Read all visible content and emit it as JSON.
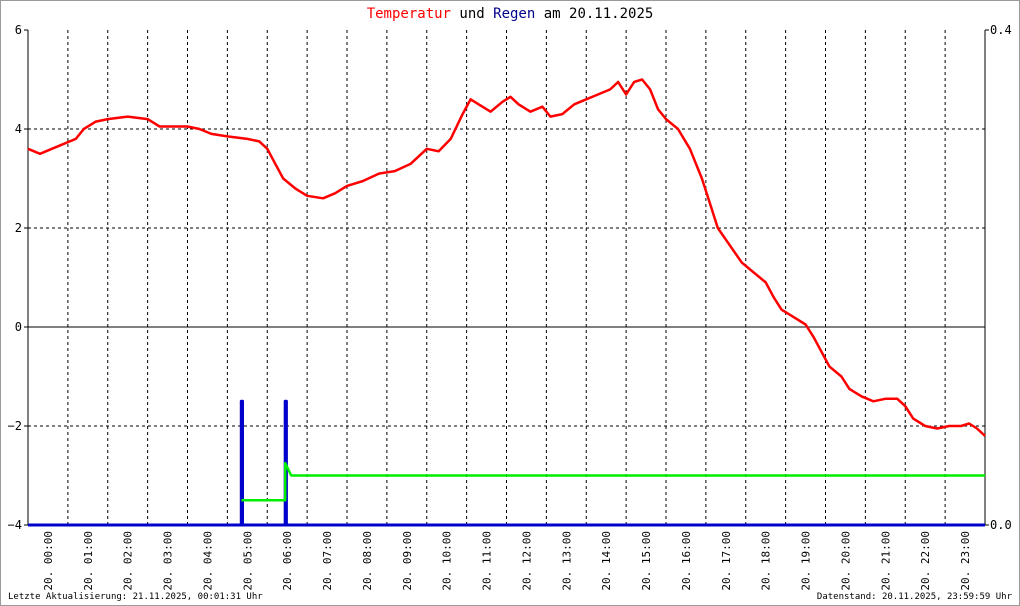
{
  "title": {
    "part1": "Temperatur",
    "part2": " und ",
    "part3": "Regen",
    "part4": " am 20.11.2025"
  },
  "footer": {
    "left": "Letzte Aktualisierung: 21.11.2025, 00:01:31 Uhr",
    "right": "Datenstand: 20.11.2025, 23:59:59 Uhr"
  },
  "colors": {
    "temperature": "#ff0000",
    "rain": "#0000cc",
    "rain_sum": "#00ee00",
    "title_temperature": "#ff0000",
    "title_rain": "#00008b"
  },
  "chart_data": {
    "type": "line",
    "x_unit": "hour of day",
    "xlim": [
      0,
      24
    ],
    "ylim_left": [
      -4,
      6
    ],
    "left_ticks": [
      "6",
      "4",
      "2",
      "0",
      "−2",
      "−4"
    ],
    "left_tick_values": [
      6,
      4,
      2,
      0,
      -2,
      -4
    ],
    "ylim_right": [
      0.0,
      0.4
    ],
    "right_ticks": [
      "0.4",
      "0.0"
    ],
    "right_tick_values": [
      0.4,
      0.0
    ],
    "x_tick_labels": [
      "20. 00:00",
      "20. 01:00",
      "20. 02:00",
      "20. 03:00",
      "20. 04:00",
      "20. 05:00",
      "20. 06:00",
      "20. 07:00",
      "20. 08:00",
      "20. 09:00",
      "20. 10:00",
      "20. 11:00",
      "20. 12:00",
      "20. 13:00",
      "20. 14:00",
      "20. 15:00",
      "20. 16:00",
      "20. 17:00",
      "20. 18:00",
      "20. 19:00",
      "20. 20:00",
      "20. 21:00",
      "20. 22:00",
      "20. 23:00"
    ],
    "grid": true,
    "series": [
      {
        "axis": "left",
        "points": [
          [
            0,
            3.6
          ],
          [
            0.3,
            3.5
          ],
          [
            0.6,
            3.6
          ],
          [
            0.9,
            3.7
          ],
          [
            1.2,
            3.8
          ],
          [
            1.4,
            4.0
          ],
          [
            1.7,
            4.15
          ],
          [
            2.0,
            4.2
          ],
          [
            2.5,
            4.25
          ],
          [
            3.0,
            4.2
          ],
          [
            3.3,
            4.05
          ],
          [
            3.6,
            4.05
          ],
          [
            4.0,
            4.05
          ],
          [
            4.3,
            4.0
          ],
          [
            4.6,
            3.9
          ],
          [
            5.0,
            3.85
          ],
          [
            5.5,
            3.8
          ],
          [
            5.8,
            3.75
          ],
          [
            6.0,
            3.6
          ],
          [
            6.2,
            3.3
          ],
          [
            6.4,
            3.0
          ],
          [
            6.7,
            2.8
          ],
          [
            7.0,
            2.65
          ],
          [
            7.4,
            2.6
          ],
          [
            7.7,
            2.7
          ],
          [
            8.0,
            2.85
          ],
          [
            8.4,
            2.95
          ],
          [
            8.8,
            3.1
          ],
          [
            9.2,
            3.15
          ],
          [
            9.6,
            3.3
          ],
          [
            10.0,
            3.6
          ],
          [
            10.3,
            3.55
          ],
          [
            10.6,
            3.8
          ],
          [
            10.9,
            4.3
          ],
          [
            11.1,
            4.6
          ],
          [
            11.3,
            4.5
          ],
          [
            11.6,
            4.35
          ],
          [
            11.9,
            4.55
          ],
          [
            12.1,
            4.65
          ],
          [
            12.3,
            4.5
          ],
          [
            12.6,
            4.35
          ],
          [
            12.9,
            4.45
          ],
          [
            13.1,
            4.25
          ],
          [
            13.4,
            4.3
          ],
          [
            13.7,
            4.5
          ],
          [
            14.0,
            4.6
          ],
          [
            14.3,
            4.7
          ],
          [
            14.6,
            4.8
          ],
          [
            14.8,
            4.95
          ],
          [
            15.0,
            4.7
          ],
          [
            15.2,
            4.95
          ],
          [
            15.4,
            5.0
          ],
          [
            15.6,
            4.8
          ],
          [
            15.8,
            4.4
          ],
          [
            16.0,
            4.2
          ],
          [
            16.3,
            4.0
          ],
          [
            16.6,
            3.6
          ],
          [
            16.9,
            3.0
          ],
          [
            17.1,
            2.5
          ],
          [
            17.3,
            2.0
          ],
          [
            17.6,
            1.65
          ],
          [
            17.9,
            1.3
          ],
          [
            18.2,
            1.1
          ],
          [
            18.5,
            0.9
          ],
          [
            18.7,
            0.6
          ],
          [
            18.9,
            0.35
          ],
          [
            19.2,
            0.2
          ],
          [
            19.5,
            0.05
          ],
          [
            19.7,
            -0.2
          ],
          [
            19.9,
            -0.5
          ],
          [
            20.1,
            -0.8
          ],
          [
            20.4,
            -1.0
          ],
          [
            20.6,
            -1.25
          ],
          [
            20.9,
            -1.4
          ],
          [
            21.2,
            -1.5
          ],
          [
            21.5,
            -1.45
          ],
          [
            21.8,
            -1.45
          ],
          [
            22.0,
            -1.6
          ],
          [
            22.2,
            -1.85
          ],
          [
            22.5,
            -2.0
          ],
          [
            22.8,
            -2.05
          ],
          [
            23.1,
            -2.0
          ],
          [
            23.4,
            -2.0
          ],
          [
            23.6,
            -1.95
          ],
          [
            23.8,
            -2.05
          ],
          [
            24.0,
            -2.2
          ]
        ]
      },
      {
        "axis": "right",
        "points": [
          [
            0,
            0.0
          ],
          [
            5.35,
            0.0
          ],
          [
            5.35,
            0.1
          ],
          [
            5.38,
            0.1
          ],
          [
            5.38,
            0.0
          ],
          [
            6.45,
            0.0
          ],
          [
            6.45,
            0.1
          ],
          [
            6.48,
            0.1
          ],
          [
            6.48,
            0.0
          ],
          [
            24,
            0.0
          ]
        ]
      },
      {
        "axis": "left",
        "points": [
          [
            5.35,
            -3.5
          ],
          [
            6.45,
            -3.5
          ],
          [
            6.45,
            -2.75
          ],
          [
            6.6,
            -3.0
          ],
          [
            24,
            -3.0
          ]
        ]
      }
    ]
  }
}
